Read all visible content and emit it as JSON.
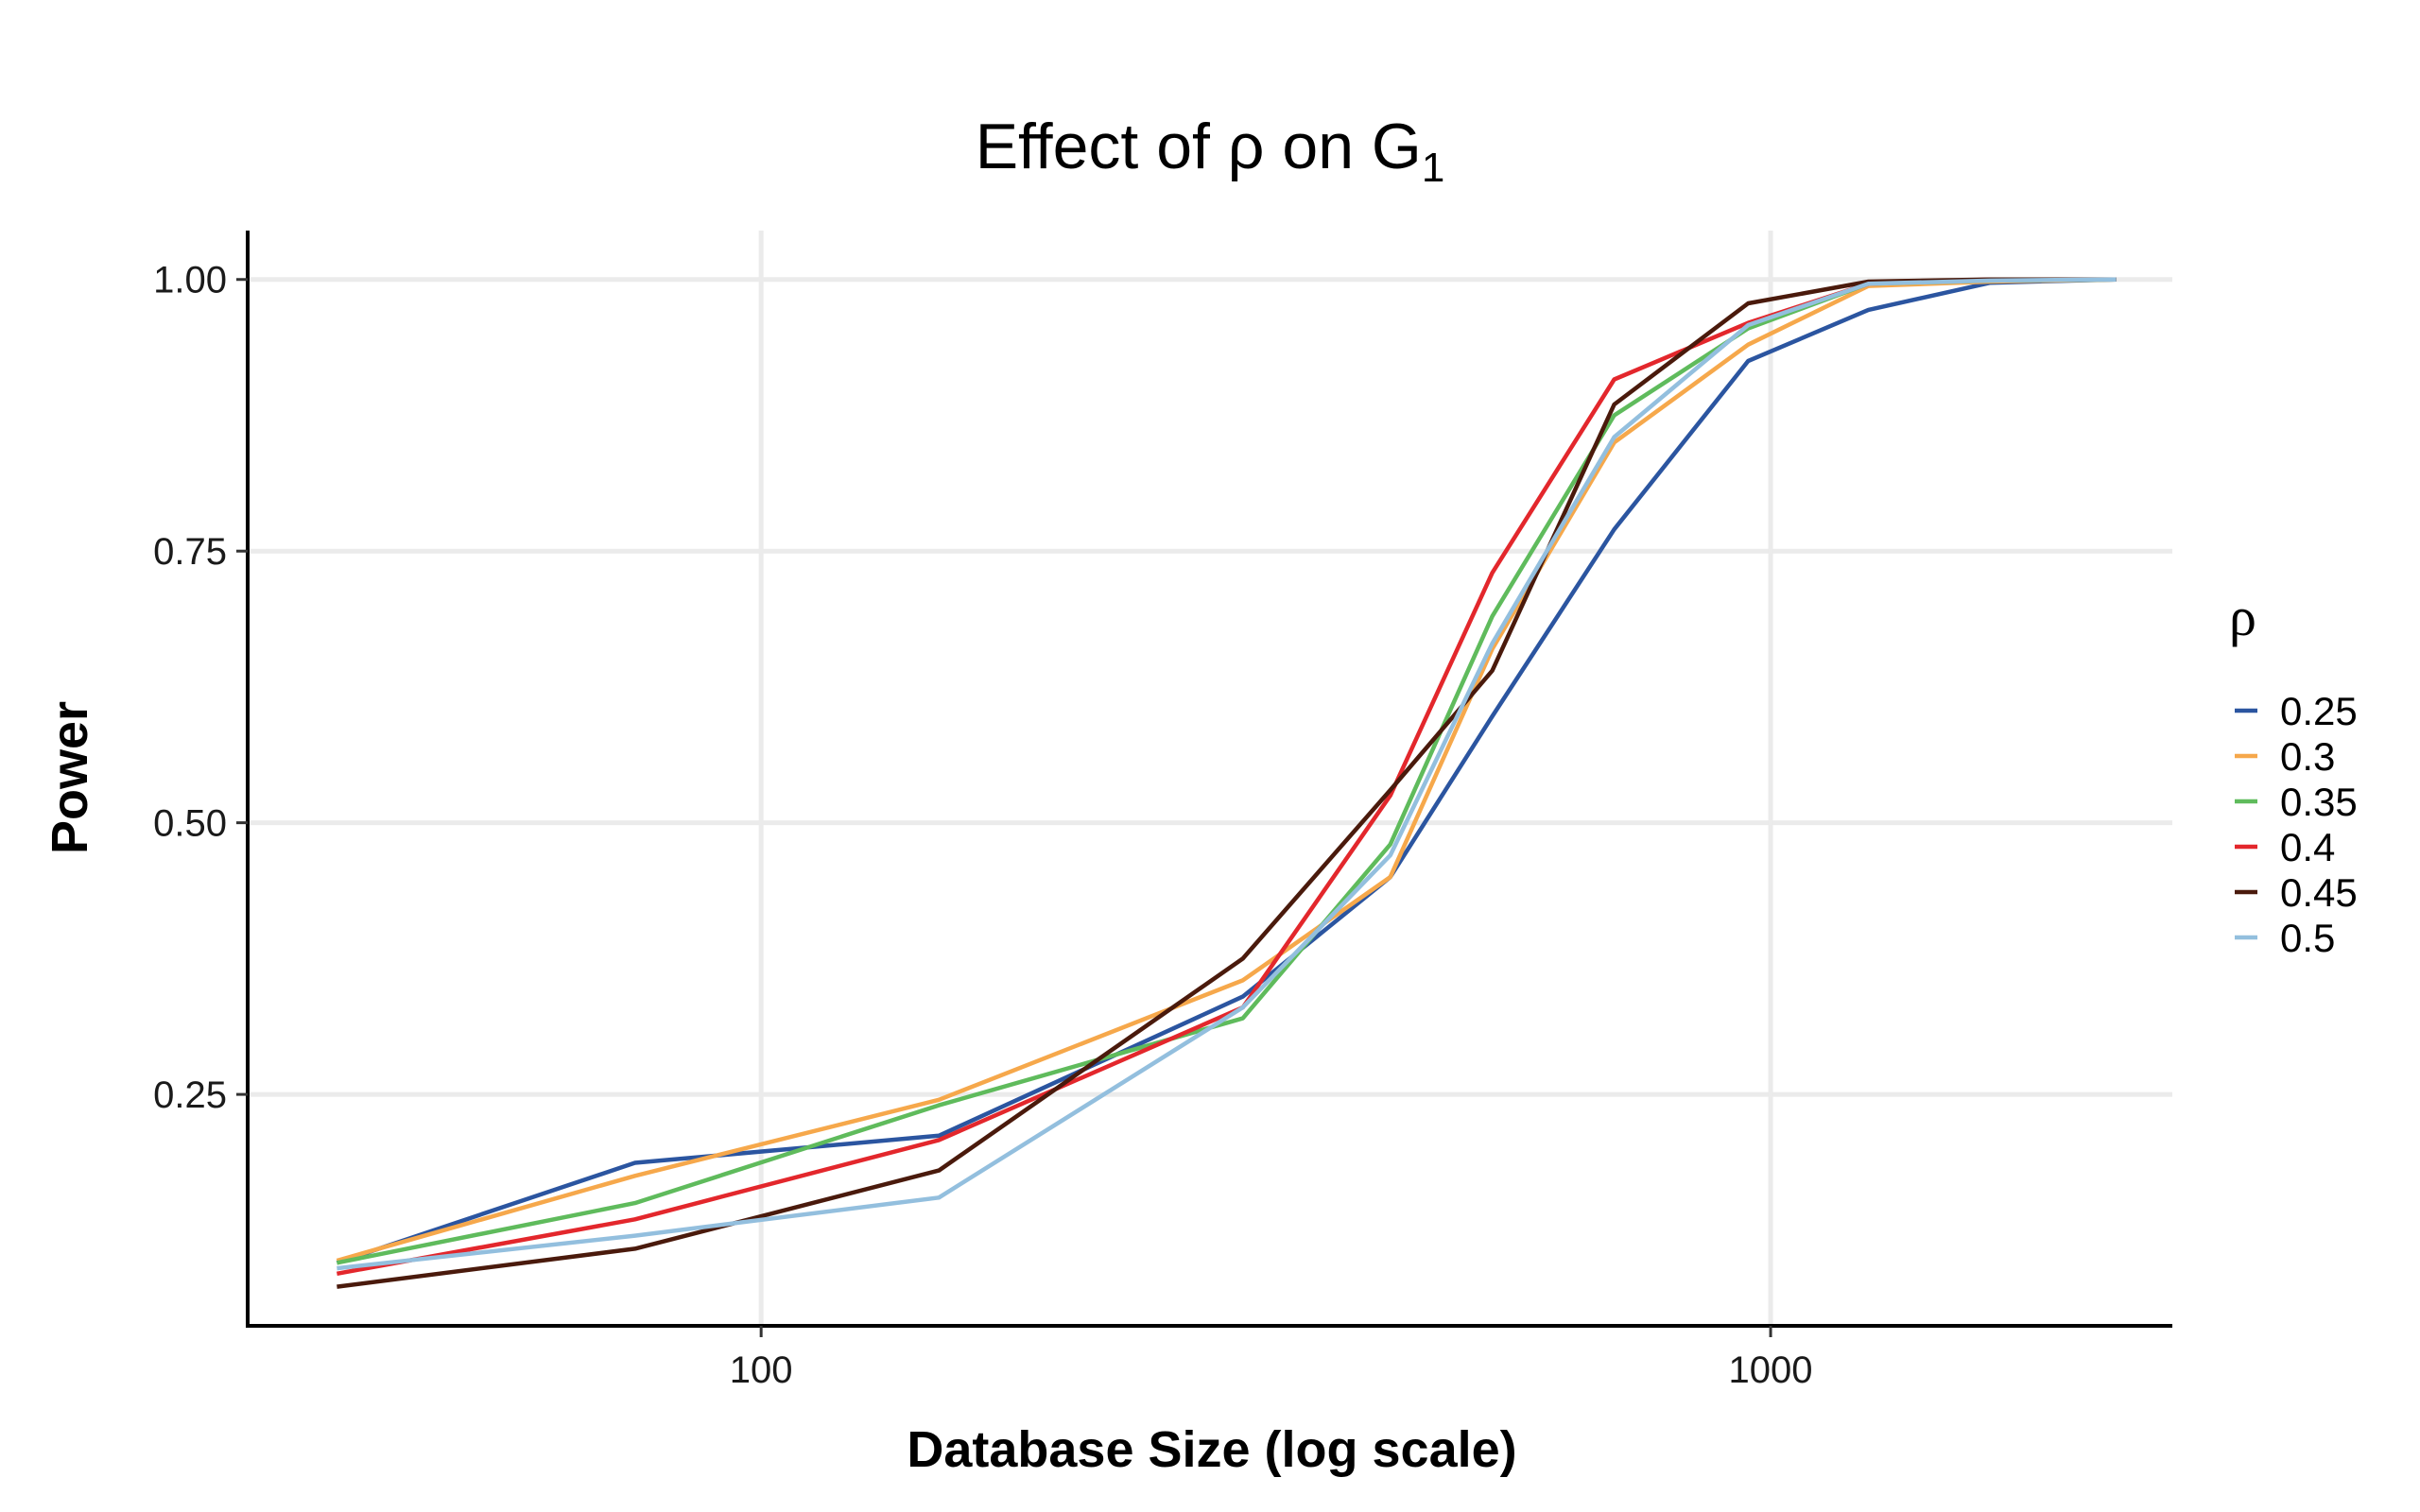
{
  "chart_data": {
    "type": "line",
    "title": "Effect of ρ on G",
    "title_subscript": "1",
    "xlabel": "Database Size (log scale)",
    "ylabel": "Power",
    "x_scale": "log",
    "xlim": [
      31,
      2500
    ],
    "ylim": [
      0.037,
      1.045
    ],
    "x_ticks": [
      100,
      1000
    ],
    "x_tick_labels": [
      "100",
      "1000"
    ],
    "y_ticks": [
      0.25,
      0.5,
      0.75,
      1.0
    ],
    "y_tick_labels": [
      "0.25",
      "0.50",
      "0.75",
      "1.00"
    ],
    "grid": true,
    "legend": {
      "title": "ρ",
      "position": "right"
    },
    "x": [
      38,
      75,
      150,
      300,
      420,
      530,
      700,
      950,
      1250,
      1650,
      2200
    ],
    "series": [
      {
        "name": "0.25",
        "color": "#2b55a0",
        "values": [
          0.095,
          0.187,
          0.212,
          0.34,
          0.45,
          0.598,
          0.77,
          0.925,
          0.972,
          0.997,
          1.0
        ]
      },
      {
        "name": "0.3",
        "color": "#f6a84b",
        "values": [
          0.097,
          0.175,
          0.245,
          0.355,
          0.45,
          0.66,
          0.85,
          0.94,
          0.994,
          0.998,
          1.0
        ]
      },
      {
        "name": "0.35",
        "color": "#5fbb5c",
        "values": [
          0.095,
          0.15,
          0.24,
          0.32,
          0.48,
          0.69,
          0.875,
          0.955,
          0.996,
          0.999,
          1.0
        ]
      },
      {
        "name": "0.4",
        "color": "#e3272c",
        "values": [
          0.085,
          0.135,
          0.208,
          0.33,
          0.525,
          0.73,
          0.908,
          0.96,
          0.996,
          1.0,
          1.0
        ]
      },
      {
        "name": "0.45",
        "color": "#4a1a0c",
        "values": [
          0.073,
          0.108,
          0.18,
          0.375,
          0.53,
          0.64,
          0.885,
          0.978,
          0.998,
          1.0,
          1.0
        ]
      },
      {
        "name": "0.5",
        "color": "#93bfde",
        "values": [
          0.09,
          0.12,
          0.155,
          0.33,
          0.47,
          0.665,
          0.855,
          0.958,
          0.996,
          0.999,
          1.0
        ]
      }
    ]
  }
}
